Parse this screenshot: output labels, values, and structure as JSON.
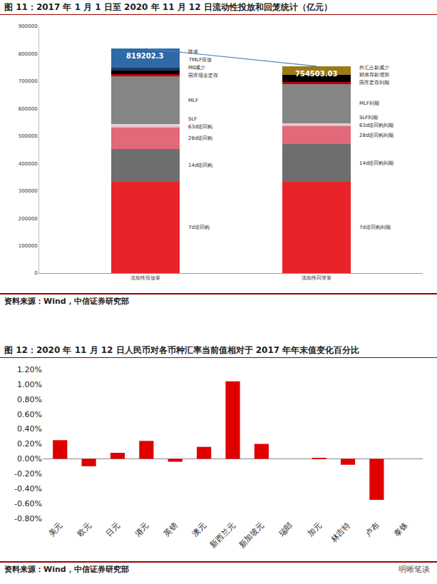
{
  "chart_data": [
    {
      "type": "bar",
      "stacked": true,
      "title": "图 11：2017 年 1 月 1 日至 2020 年 11 月 12 日流动性投放和回笼统计（亿元）",
      "source": "资料来源：Wind，中信证券研究部",
      "categories": [
        "流动性投放量",
        "流动性回笼量"
      ],
      "series": [
        {
          "name": "7d逆回购",
          "color": "#e8242a",
          "values": [
            333000,
            null
          ]
        },
        {
          "name": "14d逆回购",
          "color": "#6e6e6e",
          "values": [
            120000,
            null
          ]
        },
        {
          "name": "28d逆回购",
          "color": "#e2687a",
          "values": [
            78000,
            null
          ]
        },
        {
          "name": "63d逆回购",
          "color": "#f0b3bc",
          "values": [
            7000,
            null
          ]
        },
        {
          "name": "SLF",
          "color": "#d9d9d9",
          "values": [
            5000,
            null
          ]
        },
        {
          "name": "MLF",
          "color": "#858585",
          "values": [
            175000,
            null
          ]
        },
        {
          "name": "国库现金定存",
          "color": "#c00000",
          "values": [
            7000,
            null
          ]
        },
        {
          "name": "M0减少",
          "color": "#000000",
          "values": [
            13000,
            null
          ]
        },
        {
          "name": "TMLF投放",
          "color": "#1f3864",
          "values": [
            12000,
            null
          ]
        },
        {
          "name": "降准",
          "color": "#2e6aa6",
          "values": [
            69202.3,
            null
          ]
        },
        {
          "name": "7d逆回购到期",
          "color": "#e8242a",
          "values": [
            null,
            333000
          ]
        },
        {
          "name": "14d逆回购到期",
          "color": "#6e6e6e",
          "values": [
            null,
            137000
          ]
        },
        {
          "name": "28d逆回购到期",
          "color": "#e2687a",
          "values": [
            null,
            65000
          ]
        },
        {
          "name": "63d逆回购到期",
          "color": "#f0b3bc",
          "values": [
            null,
            7000
          ]
        },
        {
          "name": "SLF到期",
          "color": "#d9d9d9",
          "values": [
            null,
            5000
          ]
        },
        {
          "name": "MLF到期",
          "color": "#858585",
          "values": [
            null,
            143000
          ]
        },
        {
          "name": "国库定存到期",
          "color": "#c00000",
          "values": [
            null,
            8000
          ]
        },
        {
          "name": "财政存款增加",
          "color": "#000000",
          "values": [
            null,
            25000
          ]
        },
        {
          "name": "外汇占款减少",
          "color": "#9c7a17",
          "values": [
            null,
            31503.03
          ]
        }
      ],
      "totals": {
        "type": "line",
        "color": "#4a7ebb",
        "data_labels": true,
        "values": [
          819202.3,
          754503.03
        ]
      },
      "ylim": [
        0,
        900000
      ],
      "yticks": [
        0,
        100000,
        200000,
        300000,
        400000,
        500000,
        600000,
        700000,
        800000,
        900000
      ],
      "grid": false
    },
    {
      "type": "bar",
      "title": "图 12：2020 年 11 月 12 日人民币对各币种汇率当前值相对于 2017 年年末值变化百分比",
      "source": "资料来源：Wind，中信证券研究部",
      "categories": [
        "美元",
        "欧元",
        "日元",
        "港元",
        "英镑",
        "澳元",
        "新西兰元",
        "新加坡元",
        "瑞郎",
        "加元",
        "林吉特",
        "卢布",
        "泰铢"
      ],
      "values": [
        0.25,
        -0.1,
        0.08,
        0.24,
        -0.04,
        0.16,
        1.04,
        0.2,
        0.0,
        0.01,
        -0.08,
        -0.55,
        0.0
      ],
      "color": "#e00000",
      "ylim": [
        -0.8,
        1.2
      ],
      "yticks": [
        {
          "value": -0.8,
          "label": "-0.80%"
        },
        {
          "value": -0.6,
          "label": "-0.60%"
        },
        {
          "value": -0.4,
          "label": "-0.40%"
        },
        {
          "value": -0.2,
          "label": "-0.20%"
        },
        {
          "value": 0,
          "label": "0.00%"
        },
        {
          "value": 0.2,
          "label": "0.20%"
        },
        {
          "value": 0.4,
          "label": "0.40%"
        },
        {
          "value": 0.6,
          "label": "0.60%"
        },
        {
          "value": 0.8,
          "label": "0.80%"
        },
        {
          "value": 1.0,
          "label": "1.00%"
        },
        {
          "value": 1.2,
          "label": "1.20%"
        }
      ],
      "grid": false
    }
  ],
  "watermark": "明晰笔谈"
}
